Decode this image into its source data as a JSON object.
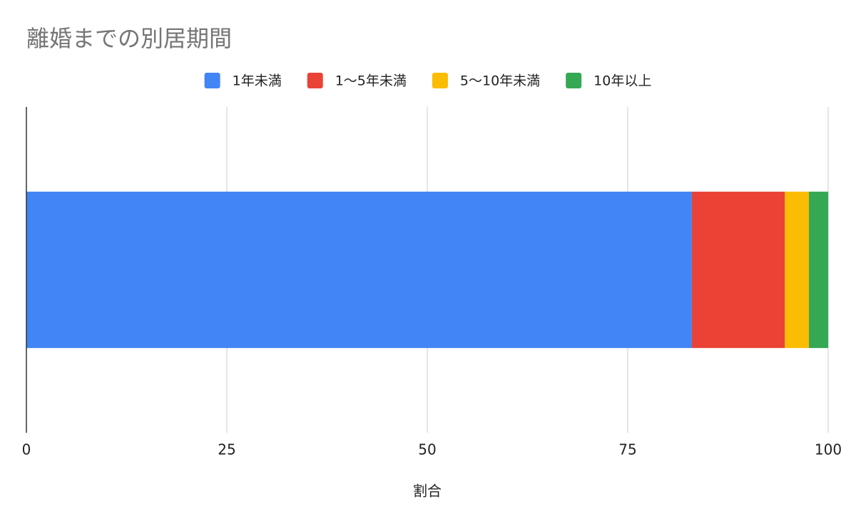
{
  "chart_data": {
    "type": "stacked-bar-horizontal",
    "title": "離婚までの別居期間",
    "x_label": "割合",
    "categories": [
      null
    ],
    "series": [
      {
        "name": "1年未満",
        "color": "#4285f4",
        "values": [
          83.0
        ]
      },
      {
        "name": "1〜5年未満",
        "color": "#ea4335",
        "values": [
          11.6
        ]
      },
      {
        "name": "5〜10年未満",
        "color": "#fbbc04",
        "values": [
          3.0
        ]
      },
      {
        "name": "10年以上",
        "color": "#34a853",
        "values": [
          2.4
        ]
      }
    ],
    "xlim": [
      0,
      100
    ],
    "xticks": [
      0,
      25,
      50,
      75,
      100
    ],
    "grid": true,
    "legend": "top"
  }
}
